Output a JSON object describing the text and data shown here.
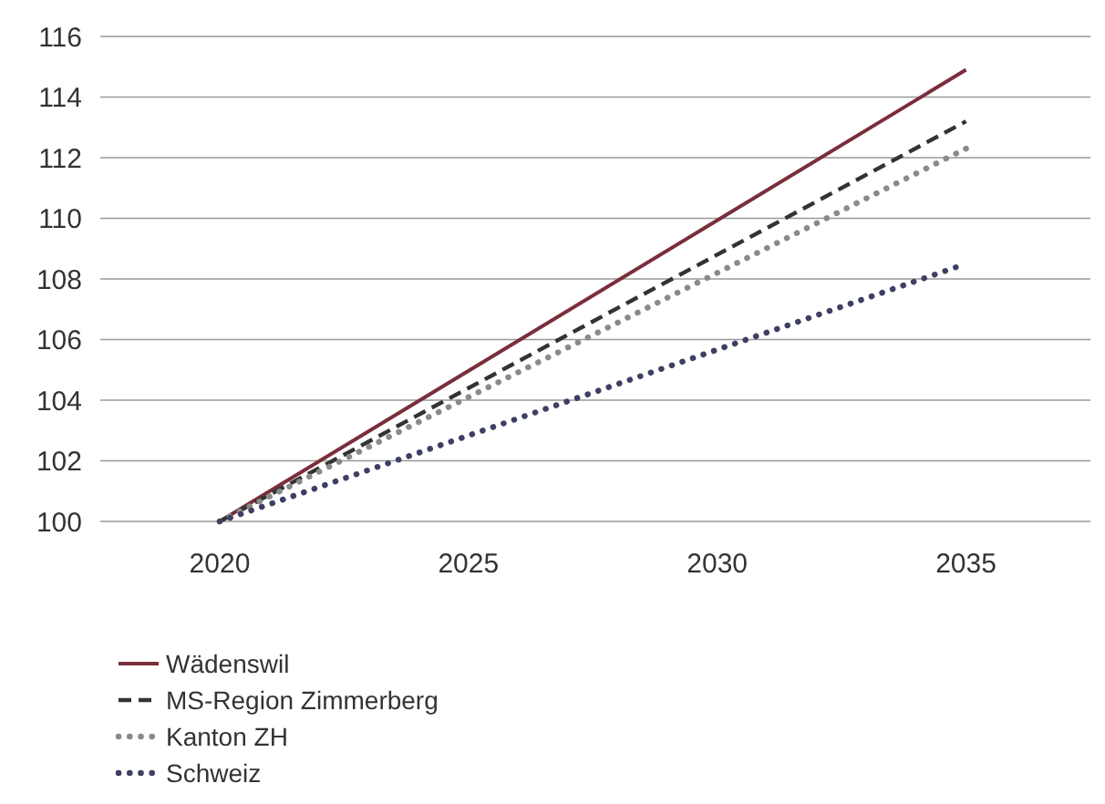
{
  "chart_data": {
    "type": "line",
    "x": [
      2020,
      2035
    ],
    "xlim": [
      2017.6,
      2037.5
    ],
    "xticks": [
      2020,
      2025,
      2030,
      2035
    ],
    "ylim": [
      100,
      116
    ],
    "yticks": [
      100,
      102,
      104,
      106,
      108,
      110,
      112,
      114,
      116
    ],
    "grid": "y",
    "legend": "bottom left",
    "series": [
      {
        "name": "Wädenswil",
        "color": "#7a2e3b",
        "values": [
          100,
          114.9
        ],
        "line_style": "solid"
      },
      {
        "name": "MS-Region Zimmerberg",
        "color": "#333333",
        "values": [
          100,
          113.2
        ],
        "line_style": "dashed"
      },
      {
        "name": "Kanton ZH",
        "color": "#8a8a8a",
        "values": [
          100,
          112.3
        ],
        "line_style": "dotted"
      },
      {
        "name": "Schweiz",
        "color": "#3d3f63",
        "values": [
          100,
          108.5
        ],
        "line_style": "dotted"
      }
    ]
  }
}
